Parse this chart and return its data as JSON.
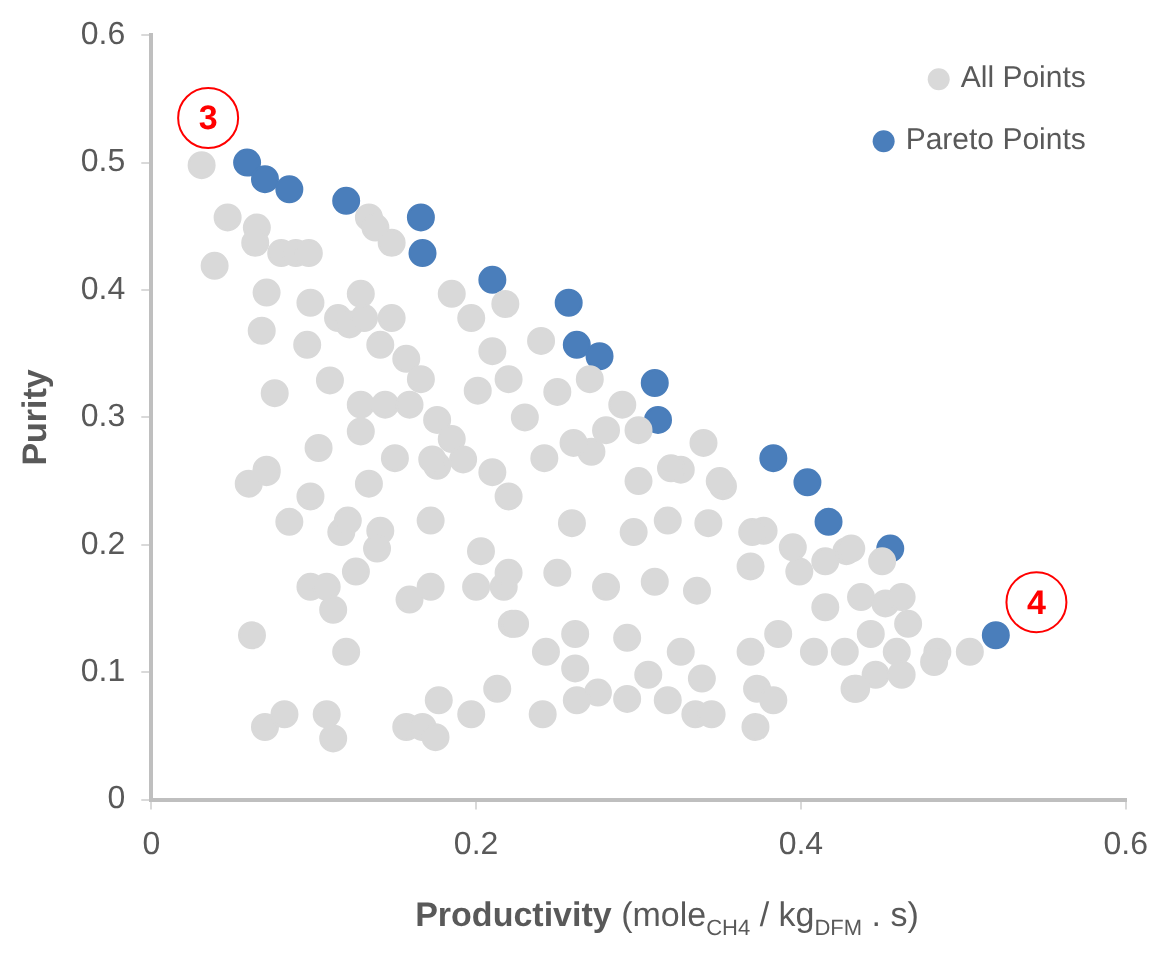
{
  "chart_data": {
    "type": "scatter",
    "xlabel": "Productivity  (mole$_{CH4}$ / kg$_{DFM}$ . s)",
    "ylabel": "Purity",
    "xlim": [
      0,
      0.6
    ],
    "xticks": [
      0,
      0.2,
      0.4,
      0.6
    ],
    "ylim": [
      0,
      0.6
    ],
    "yticks": [
      0,
      0.1,
      0.2,
      0.3,
      0.4,
      0.5,
      0.6
    ],
    "grid": false,
    "legend": "top right",
    "marker": "circle",
    "annotations": [
      {
        "text": "3",
        "x": 0.035,
        "y": 0.535
      },
      {
        "text": "4",
        "x": 0.545,
        "y": 0.155
      }
    ],
    "series": [
      {
        "name": "All Points",
        "color": "#d9d9d9",
        "x": [
          0.031,
          0.039,
          0.047,
          0.065,
          0.064,
          0.08,
          0.089,
          0.097,
          0.071,
          0.068,
          0.098,
          0.076,
          0.096,
          0.11,
          0.103,
          0.115,
          0.122,
          0.131,
          0.134,
          0.129,
          0.148,
          0.141,
          0.157,
          0.166,
          0.129,
          0.144,
          0.129,
          0.071,
          0.138,
          0.148,
          0.185,
          0.197,
          0.21,
          0.218,
          0.159,
          0.176,
          0.185,
          0.201,
          0.192,
          0.21,
          0.176,
          0.06,
          0.071,
          0.098,
          0.085,
          0.117,
          0.121,
          0.141,
          0.139,
          0.126,
          0.098,
          0.108,
          0.112,
          0.062,
          0.12,
          0.07,
          0.082,
          0.108,
          0.112,
          0.157,
          0.167,
          0.175,
          0.177,
          0.197,
          0.213,
          0.159,
          0.172,
          0.2,
          0.217,
          0.203,
          0.172,
          0.134,
          0.15,
          0.173,
          0.222,
          0.242,
          0.271,
          0.326,
          0.352,
          0.22,
          0.259,
          0.297,
          0.318,
          0.343,
          0.377,
          0.395,
          0.428,
          0.22,
          0.25,
          0.28,
          0.31,
          0.336,
          0.369,
          0.399,
          0.415,
          0.224,
          0.261,
          0.293,
          0.326,
          0.369,
          0.386,
          0.408,
          0.243,
          0.261,
          0.275,
          0.293,
          0.306,
          0.339,
          0.335,
          0.345,
          0.318,
          0.373,
          0.372,
          0.383,
          0.241,
          0.262,
          0.433,
          0.415,
          0.431,
          0.45,
          0.437,
          0.452,
          0.462,
          0.466,
          0.443,
          0.459,
          0.484,
          0.482,
          0.504,
          0.427,
          0.446,
          0.462,
          0.434,
          0.22,
          0.25,
          0.24,
          0.27,
          0.29,
          0.3,
          0.23,
          0.26,
          0.28,
          0.32,
          0.35,
          0.34,
          0.3,
          0.37
        ],
        "values": [
          0.498,
          0.419,
          0.457,
          0.449,
          0.437,
          0.429,
          0.429,
          0.429,
          0.398,
          0.368,
          0.39,
          0.319,
          0.357,
          0.329,
          0.276,
          0.378,
          0.373,
          0.378,
          0.457,
          0.397,
          0.378,
          0.357,
          0.346,
          0.33,
          0.31,
          0.31,
          0.289,
          0.259,
          0.449,
          0.437,
          0.397,
          0.378,
          0.352,
          0.389,
          0.31,
          0.298,
          0.283,
          0.321,
          0.267,
          0.257,
          0.262,
          0.248,
          0.257,
          0.238,
          0.218,
          0.21,
          0.219,
          0.211,
          0.197,
          0.179,
          0.167,
          0.167,
          0.149,
          0.129,
          0.116,
          0.057,
          0.067,
          0.067,
          0.048,
          0.057,
          0.057,
          0.049,
          0.078,
          0.067,
          0.087,
          0.157,
          0.167,
          0.167,
          0.167,
          0.195,
          0.219,
          0.248,
          0.268,
          0.267,
          0.138,
          0.268,
          0.273,
          0.259,
          0.246,
          0.238,
          0.217,
          0.21,
          0.219,
          0.217,
          0.211,
          0.198,
          0.195,
          0.178,
          0.178,
          0.167,
          0.171,
          0.164,
          0.183,
          0.179,
          0.151,
          0.138,
          0.13,
          0.127,
          0.116,
          0.116,
          0.13,
          0.116,
          0.116,
          0.103,
          0.084,
          0.079,
          0.098,
          0.095,
          0.067,
          0.067,
          0.078,
          0.087,
          0.057,
          0.078,
          0.067,
          0.078,
          0.087,
          0.187,
          0.197,
          0.187,
          0.159,
          0.154,
          0.159,
          0.138,
          0.13,
          0.116,
          0.116,
          0.108,
          0.116,
          0.116,
          0.098,
          0.098,
          0.087,
          0.33,
          0.32,
          0.36,
          0.33,
          0.31,
          0.29,
          0.3,
          0.28,
          0.29,
          0.26,
          0.25,
          0.28,
          0.25,
          0.21
        ]
      },
      {
        "name": "Pareto Points",
        "color": "#4a7ebb",
        "x": [
          0.059,
          0.07,
          0.085,
          0.12,
          0.166,
          0.167,
          0.21,
          0.257,
          0.262,
          0.276,
          0.31,
          0.312,
          0.383,
          0.404,
          0.417,
          0.455,
          0.52
        ],
        "values": [
          0.5,
          0.487,
          0.479,
          0.47,
          0.457,
          0.429,
          0.408,
          0.39,
          0.357,
          0.348,
          0.327,
          0.298,
          0.268,
          0.249,
          0.218,
          0.197,
          0.129
        ]
      }
    ]
  }
}
